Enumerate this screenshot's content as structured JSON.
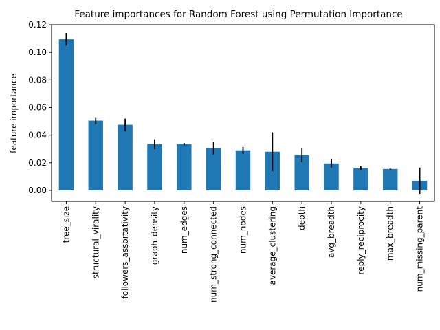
{
  "chart_data": {
    "type": "bar",
    "title": "Feature importances for Random Forest using Permutation Importance",
    "xlabel": "",
    "ylabel": "feature importance",
    "ylim": [
      -0.008,
      0.12
    ],
    "yticks": [
      0.0,
      0.02,
      0.04,
      0.06,
      0.08,
      0.1,
      0.12
    ],
    "ytick_labels": [
      "0.00",
      "0.02",
      "0.04",
      "0.06",
      "0.08",
      "0.10",
      "0.12"
    ],
    "grid": false,
    "legend": "none",
    "bar_color": "#1f77b4",
    "error_color": "#000000",
    "categories": [
      "tree_size",
      "structural_virality",
      "followers_assortativity",
      "graph_density",
      "num_edges",
      "num_strong_connected",
      "num_nodes",
      "average_clustering",
      "depth",
      "avg_breadth",
      "reply_reciprocity",
      "max_breadth",
      "num_missing_parent"
    ],
    "values": [
      0.1095,
      0.0505,
      0.0475,
      0.0335,
      0.0335,
      0.0305,
      0.029,
      0.028,
      0.0255,
      0.0195,
      0.016,
      0.0155,
      0.007
    ],
    "errors": [
      0.0045,
      0.0025,
      0.0045,
      0.0035,
      0.0008,
      0.0045,
      0.0025,
      0.014,
      0.005,
      0.003,
      0.0015,
      0.0005,
      0.0095
    ]
  }
}
